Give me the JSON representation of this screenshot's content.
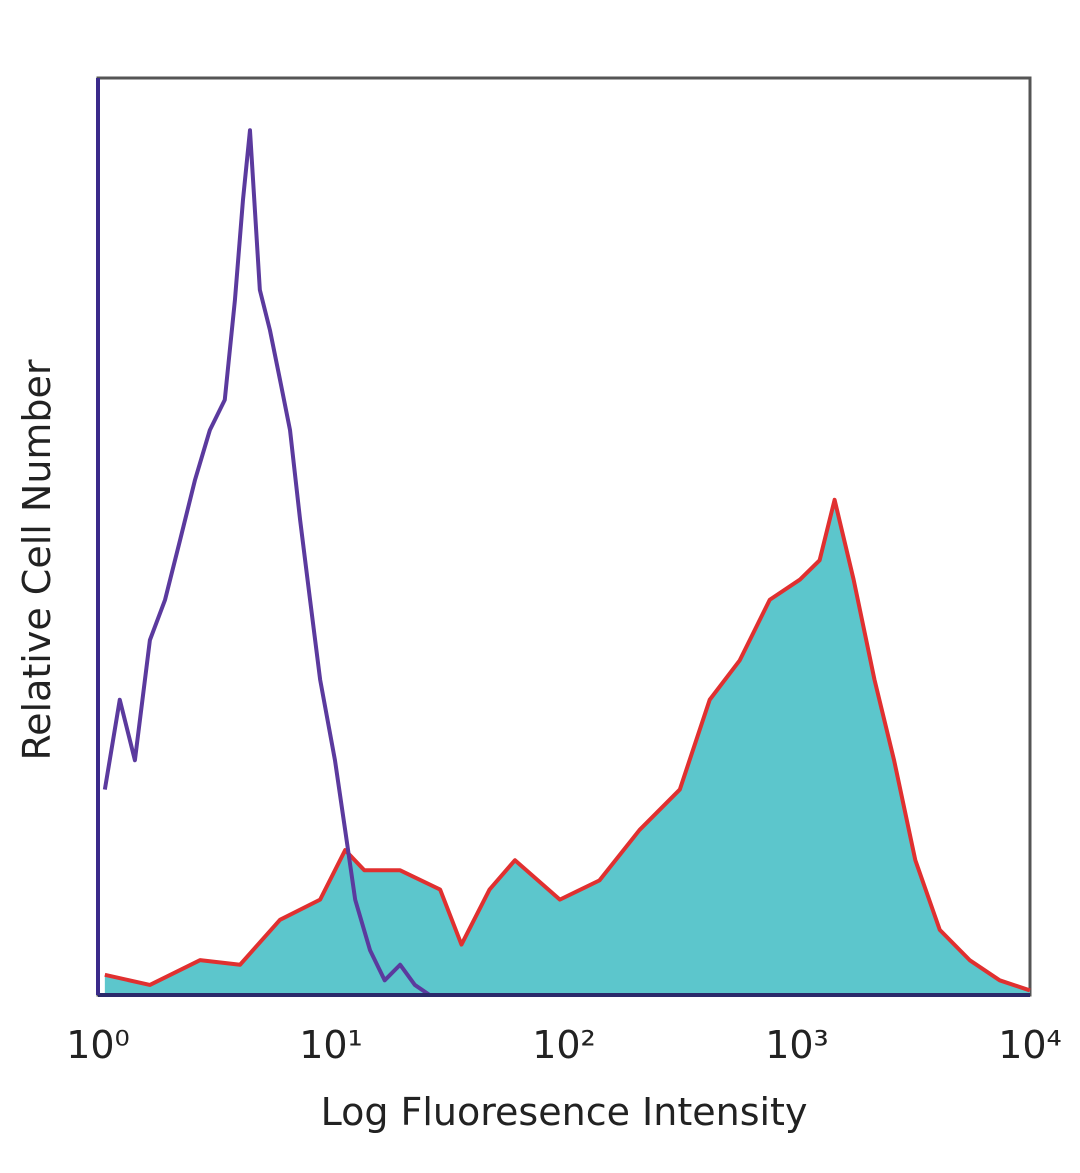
{
  "chart_data": {
    "type": "histogram-overlay",
    "x_label": "Log Fluoresence Intensity",
    "y_label": "Relative Cell Number",
    "xscale": "log",
    "xlim": [
      1,
      10000
    ],
    "ylim": [
      0,
      100
    ],
    "xticks": [
      {
        "value": 1,
        "label": "10⁰"
      },
      {
        "value": 10,
        "label": "10¹"
      },
      {
        "value": 100,
        "label": "10²"
      },
      {
        "value": 1000,
        "label": "10³"
      },
      {
        "value": 10000,
        "label": "10⁴"
      }
    ],
    "series": [
      {
        "color": "#e03030",
        "fill": "#5cc6cc",
        "x": [
          1.07,
          1.67,
          2.74,
          4.07,
          6.04,
          8.98,
          11.5,
          13.9,
          19.8,
          29.4,
          36.3,
          47.9,
          61.6,
          96,
          142,
          211,
          314,
          422,
          568,
          764,
          1030,
          1250,
          1450,
          1750,
          2150,
          2610,
          3220,
          4100,
          5510,
          7410,
          10000
        ],
        "values": [
          2.2,
          1.1,
          3.8,
          3.3,
          8.2,
          10.4,
          15.8,
          13.6,
          13.6,
          11.5,
          5.5,
          11.5,
          14.7,
          10.4,
          12.5,
          18,
          22.4,
          32.2,
          36.5,
          43.1,
          45.3,
          47.4,
          54,
          45.3,
          34.4,
          25.6,
          14.7,
          7.1,
          3.8,
          1.6,
          0.5
        ]
      },
      {
        "color": "#5b3a9e",
        "x": [
          1.07,
          1.24,
          1.44,
          1.67,
          1.94,
          2.25,
          2.61,
          3.02,
          3.5,
          3.87,
          4.19,
          4.49,
          4.95,
          5.47,
          6.04,
          6.67,
          7.37,
          8.13,
          8.98,
          10.4,
          11.5,
          12.7,
          14.7,
          17,
          19.8,
          22.9,
          26.5
        ],
        "values": [
          22.4,
          32.2,
          25.6,
          38.7,
          43.1,
          49.6,
          56.2,
          61.6,
          64.9,
          75.8,
          86.7,
          94.3,
          76.9,
          72.5,
          67.1,
          61.6,
          51.8,
          43.1,
          34.4,
          25.6,
          18,
          10.4,
          4.9,
          1.6,
          3.3,
          1.1,
          0
        ]
      }
    ]
  }
}
